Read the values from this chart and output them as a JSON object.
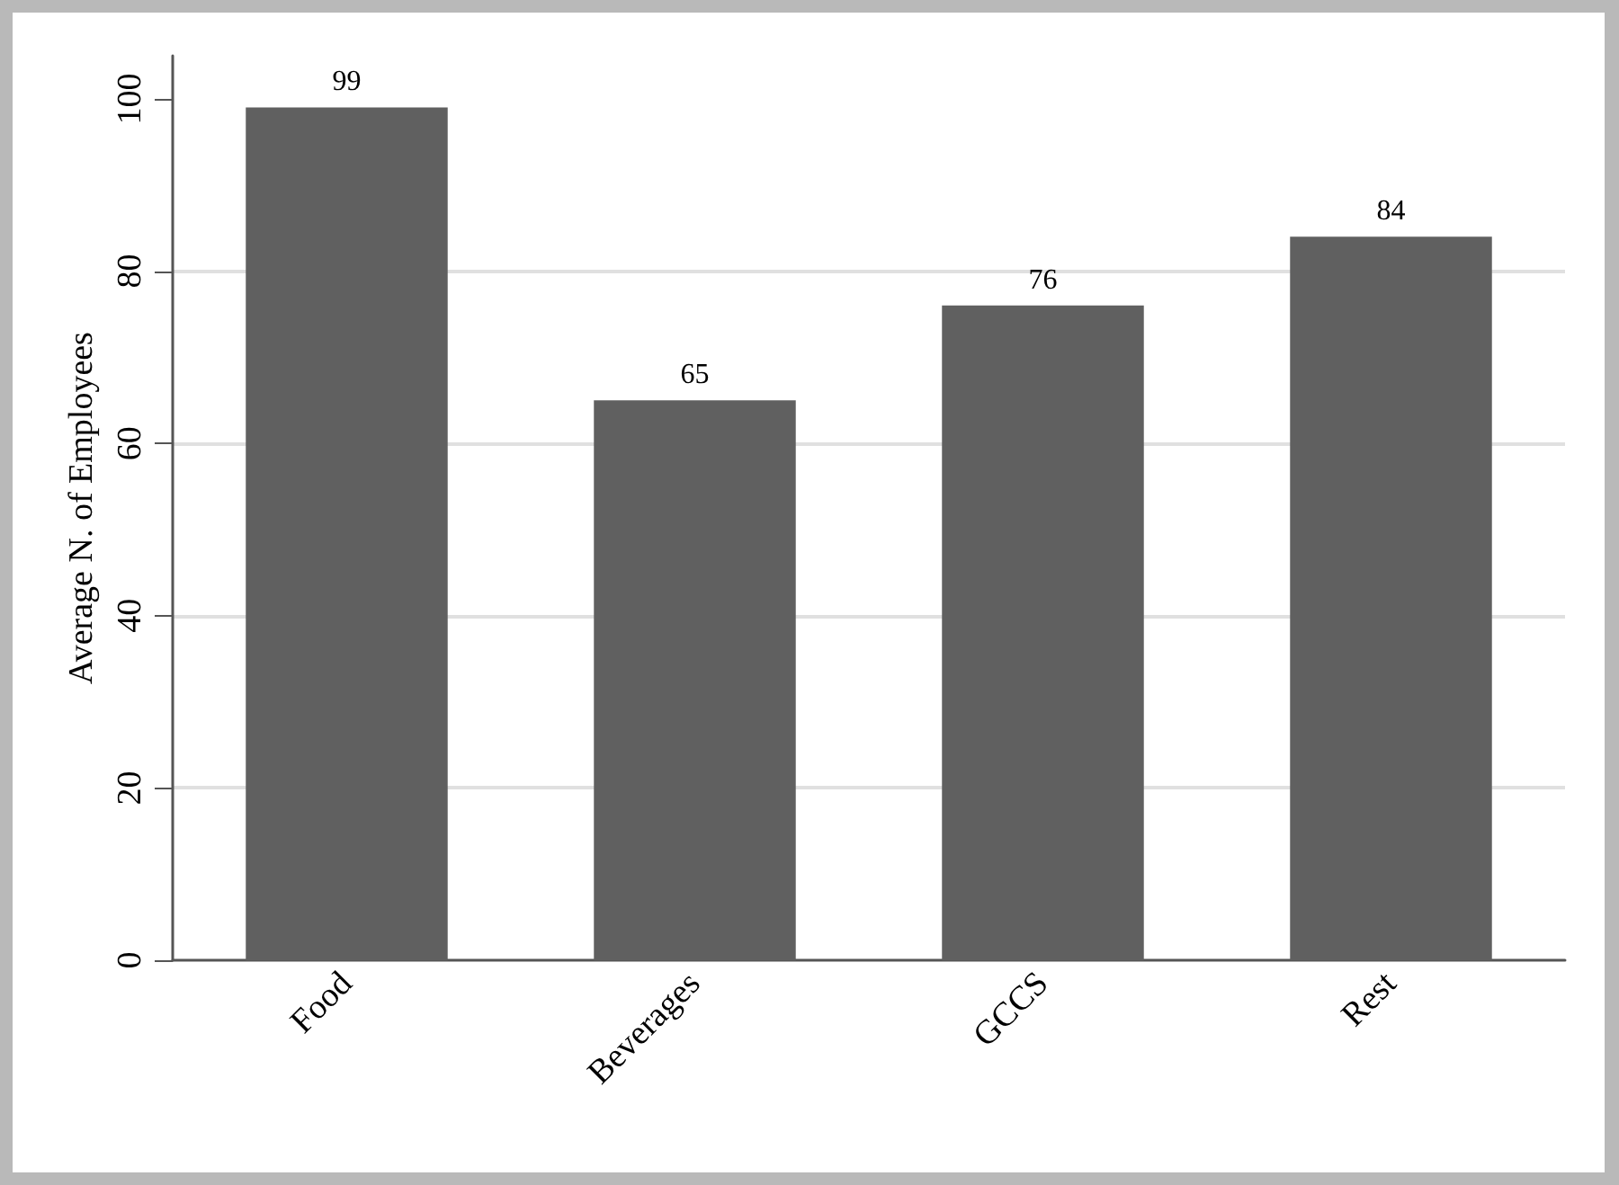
{
  "chart_data": {
    "type": "bar",
    "ylabel": "Average N. of Employees",
    "categories": [
      "Food",
      "Beverages",
      "GCCS",
      "Rest"
    ],
    "values": [
      99,
      65,
      76,
      84
    ],
    "color": "#606060",
    "ylim": [
      0,
      105
    ],
    "yticks": [
      0,
      20,
      40,
      60,
      80,
      100
    ],
    "grid": "y",
    "data_labels": true
  }
}
